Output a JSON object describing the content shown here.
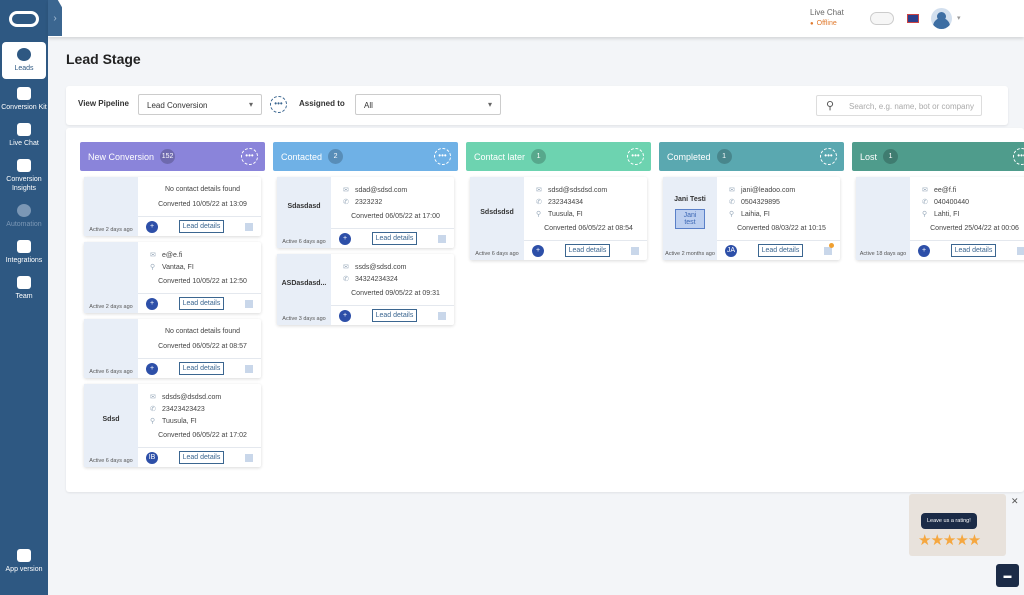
{
  "sidebar": {
    "items": [
      {
        "label": "Leads"
      },
      {
        "label": "Conversion Kit"
      },
      {
        "label": "Live Chat"
      },
      {
        "label": "Conversion Insights"
      },
      {
        "label": "Automation"
      },
      {
        "label": "Integrations"
      },
      {
        "label": "Team"
      }
    ],
    "app_version": "App version"
  },
  "topbar": {
    "live_chat_label": "Live Chat",
    "status": "Offline",
    "status_color": "#e07a2e"
  },
  "page_title": "Lead Stage",
  "filters": {
    "view_pipeline_label": "View Pipeline",
    "pipeline_value": "Lead Conversion",
    "assigned_label": "Assigned to",
    "assigned_value": "All",
    "search_placeholder": "Search, e.g. name, bot or company"
  },
  "columns": [
    {
      "title": "New Conversion",
      "count": "152",
      "color": "#8a84da",
      "cards": [
        {
          "name": "",
          "active": "Active 2 days ago",
          "lines": [],
          "no_contact": "No contact details found",
          "converted": "Converted 10/05/22 at 13:09",
          "avatar": "+"
        },
        {
          "name": "",
          "active": "Active 2 days ago",
          "lines": [
            {
              "icon": "email",
              "text": "e@e.fi"
            },
            {
              "icon": "location",
              "text": "Vantaa, FI"
            }
          ],
          "converted": "Converted 10/05/22 at 12:50",
          "avatar": "+"
        },
        {
          "name": "",
          "active": "Active 6 days ago",
          "lines": [],
          "no_contact": "No contact details found",
          "converted": "Converted 06/05/22 at 08:57",
          "avatar": "+"
        },
        {
          "name": "Sdsd",
          "active": "Active 6 days ago",
          "lines": [
            {
              "icon": "email",
              "text": "sdsds@dsdsd.com"
            },
            {
              "icon": "phone",
              "text": "23423423423"
            },
            {
              "icon": "location",
              "text": "Tuusula, FI"
            }
          ],
          "converted": "Converted 06/05/22 at 17:02",
          "avatar": "IB"
        }
      ]
    },
    {
      "title": "Contacted",
      "count": "2",
      "color": "#6fb1e6",
      "cards": [
        {
          "name": "Sdasdasd",
          "active": "Active 6 days ago",
          "lines": [
            {
              "icon": "email",
              "text": "sdad@sdsd.com"
            },
            {
              "icon": "phone",
              "text": "2323232"
            }
          ],
          "converted": "Converted 06/05/22 at 17:00",
          "avatar": "+"
        },
        {
          "name": "ASDasdasd...",
          "active": "Active 3 days ago",
          "lines": [
            {
              "icon": "email",
              "text": "ssds@sdsd.com"
            },
            {
              "icon": "phone",
              "text": "34324234324"
            }
          ],
          "converted": "Converted 09/05/22 at 09:31",
          "avatar": "+"
        }
      ]
    },
    {
      "title": "Contact later",
      "count": "1",
      "color": "#6dd3b0",
      "cards": [
        {
          "name": "Sdsdsdsd",
          "active": "Active 6 days ago",
          "lines": [
            {
              "icon": "email",
              "text": "sdsd@sdsdsd.com"
            },
            {
              "icon": "phone",
              "text": "232343434"
            },
            {
              "icon": "location",
              "text": "Tuusula, FI"
            }
          ],
          "converted": "Converted 06/05/22 at 08:54",
          "avatar": "+"
        }
      ]
    },
    {
      "title": "Completed",
      "count": "1",
      "color": "#5aa8b0",
      "cards": [
        {
          "name": "Jani Testi",
          "tag": "Jani test",
          "active": "Active 2 months ago",
          "lines": [
            {
              "icon": "email",
              "text": "jani@leadoo.com"
            },
            {
              "icon": "phone",
              "text": "0504329895"
            },
            {
              "icon": "location",
              "text": "Laihia, FI"
            }
          ],
          "converted": "Converted 08/03/22 at 10:15",
          "avatar": "JA",
          "note_badge": true
        }
      ]
    },
    {
      "title": "Lost",
      "count": "1",
      "color": "#4f9c8c",
      "cards": [
        {
          "name": "",
          "active": "Active 18 days ago",
          "lines": [
            {
              "icon": "email",
              "text": "ee@f.fi"
            },
            {
              "icon": "phone",
              "text": "040400440"
            },
            {
              "icon": "location",
              "text": "Lahti, FI"
            }
          ],
          "converted": "Converted 25/04/22 at 00:06",
          "avatar": "+"
        }
      ]
    }
  ],
  "lead_details_label": "Lead details",
  "rating": {
    "text": "Leave us a rating!",
    "stars": 5
  }
}
